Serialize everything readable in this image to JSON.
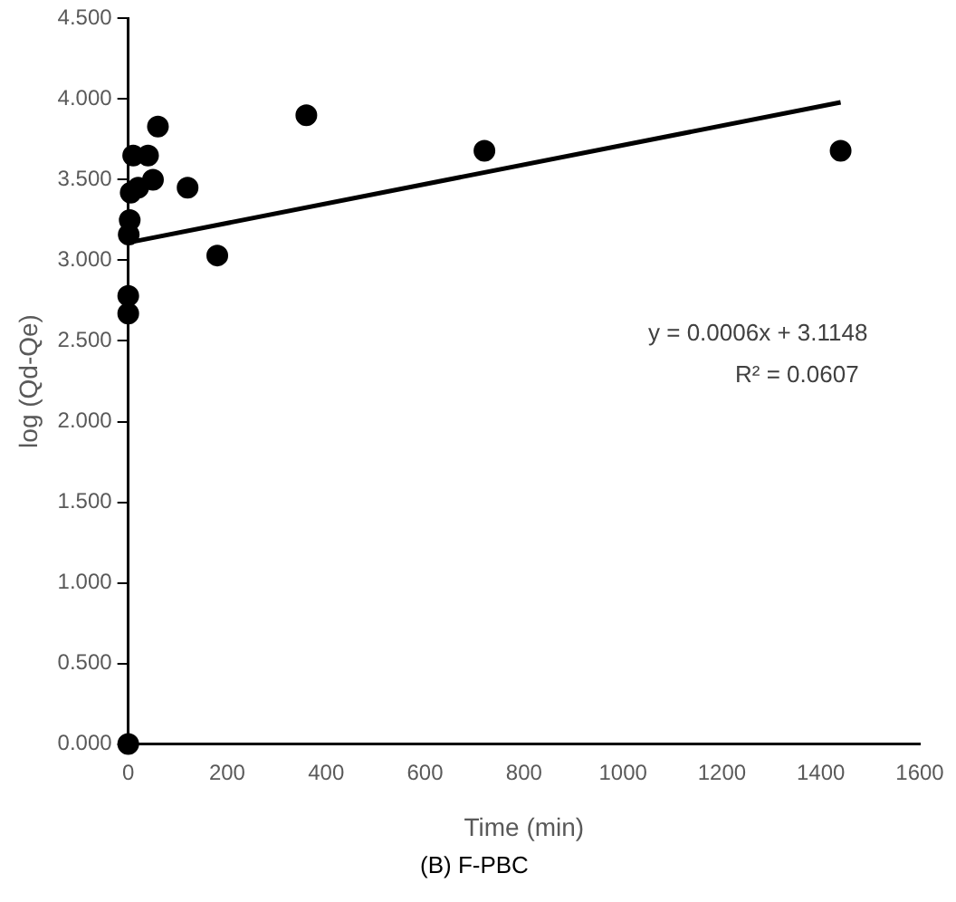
{
  "chart_data": {
    "type": "scatter",
    "xlabel": "Time (min)",
    "ylabel": "log (Qd-Qe)",
    "series": [
      {
        "color": "#000000",
        "x": [
          0,
          0,
          0,
          1,
          3,
          5,
          10,
          20,
          40,
          50,
          60,
          120,
          180,
          360,
          720,
          1440
        ],
        "values": [
          0,
          2.67,
          2.78,
          3.16,
          3.25,
          3.42,
          3.65,
          3.45,
          3.65,
          3.5,
          3.83,
          3.45,
          3.03,
          3.9,
          3.68,
          3.68
        ]
      },
      {
        "type": "line",
        "marker": "none",
        "color": "#000000",
        "x": [
          0,
          1440
        ],
        "values": [
          3.11,
          3.98
        ]
      }
    ],
    "xlim": [
      0,
      1600
    ],
    "xticks": [
      0,
      200,
      400,
      600,
      800,
      1000,
      1200,
      1400,
      1600
    ],
    "ylim": [
      0,
      4.5
    ],
    "yticks": [
      {
        "value": 0,
        "label": "0.000"
      },
      {
        "value": 0.5,
        "label": "0.500"
      },
      {
        "value": 1,
        "label": "1.000"
      },
      {
        "value": 1.5,
        "label": "1.500"
      },
      {
        "value": 2,
        "label": "2.000"
      },
      {
        "value": 2.5,
        "label": "2.500"
      },
      {
        "value": 3,
        "label": "3.000"
      },
      {
        "value": 3.5,
        "label": "3.500"
      },
      {
        "value": 4,
        "label": "4.000"
      },
      {
        "value": 4.5,
        "label": "4.500"
      }
    ],
    "grid": false,
    "legend": false,
    "marker": "circle",
    "annotations": [
      "y = 0.0006x + 3.1148",
      "R² = 0.0607",
      "(B) F-PBC"
    ]
  }
}
